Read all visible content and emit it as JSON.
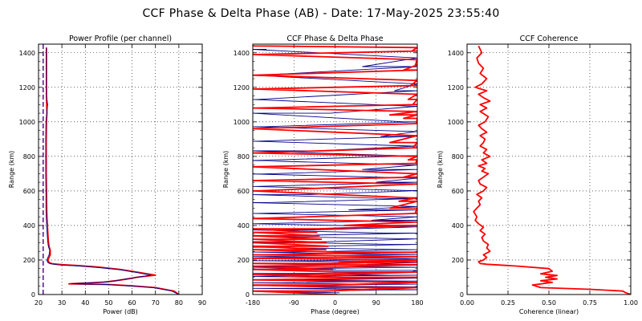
{
  "title": "CCF Phase & Delta Phase (AB) - Date: 17-May-2025 23:55:40",
  "chart_data": [
    {
      "type": "line",
      "title": "Power Profile (per channel)",
      "xlabel": "Power (dB)",
      "ylabel": "Range (km)",
      "xlim": [
        20,
        90
      ],
      "ylim": [
        0,
        1450
      ],
      "xticks": [
        "20",
        "30",
        "40",
        "50",
        "60",
        "70",
        "80",
        "90"
      ],
      "yticks": [
        "0",
        "200",
        "400",
        "600",
        "800",
        "1000",
        "1200",
        "1400"
      ],
      "grid": "dotted",
      "series": [
        {
          "color": "#ff0000",
          "x": [
            80,
            78,
            70,
            60,
            50,
            42,
            33,
            40,
            48,
            53,
            59,
            62,
            70,
            63,
            55,
            45,
            37,
            30,
            26,
            24.5,
            24,
            25,
            25,
            24.5,
            24.2,
            24,
            23.8,
            23.6,
            23.5,
            23.4,
            23.3,
            23.3,
            23.3,
            23.4,
            23.6,
            23.5,
            23.4,
            23.4,
            23.4,
            23.4
          ],
          "y": [
            0,
            20,
            40,
            50,
            58,
            60,
            62,
            66,
            72,
            80,
            92,
            100,
            112,
            128,
            145,
            160,
            168,
            173,
            178,
            185,
            200,
            230,
            255,
            280,
            310,
            350,
            400,
            450,
            500,
            600,
            700,
            800,
            900,
            1000,
            1050,
            1100,
            1150,
            1250,
            1350,
            1430
          ]
        },
        {
          "color": "#00008b",
          "x": [
            80,
            77,
            69,
            58,
            49,
            40,
            34,
            41,
            49,
            54,
            58,
            63,
            68,
            62,
            54,
            44,
            36,
            29,
            25,
            24,
            23.5,
            24.5,
            24.8,
            24.2,
            23.9,
            23.7,
            23.5,
            23.3,
            23.2,
            23.2,
            23.1,
            23.1,
            23.1,
            23.2,
            23.5,
            23.9,
            23.4,
            23.3,
            23.3,
            23.3
          ],
          "y": [
            0,
            20,
            40,
            50,
            58,
            60,
            63,
            67,
            73,
            82,
            92,
            102,
            112,
            128,
            145,
            158,
            166,
            171,
            178,
            185,
            200,
            230,
            255,
            280,
            310,
            350,
            400,
            450,
            500,
            600,
            700,
            800,
            900,
            1000,
            1050,
            1100,
            1150,
            1250,
            1350,
            1430
          ]
        },
        {
          "color": "#4b0082",
          "dashed": true,
          "x": [
            22,
            22
          ],
          "y": [
            0,
            1450
          ]
        }
      ]
    },
    {
      "type": "line",
      "title": "CCF Phase & Delta Phase",
      "xlabel": "Phase (degree)",
      "ylabel": "Range (km)",
      "xlim": [
        -180,
        180
      ],
      "ylim": [
        0,
        1450
      ],
      "xticks": [
        "-180",
        "-90",
        "0",
        "90",
        "180"
      ],
      "yticks": [
        "0",
        "200",
        "400",
        "600",
        "800",
        "1000",
        "1200",
        "1400"
      ],
      "grid": "dotted",
      "series": [
        {
          "color": "#00008b",
          "wrap": true,
          "x": [
            10,
            -150,
            160,
            -40,
            170,
            -170,
            60,
            -120,
            150,
            -10,
            175,
            -175,
            120,
            -60,
            165,
            10,
            -150,
            140,
            -165,
            70,
            150,
            -30,
            175,
            -160,
            100,
            -90,
            168,
            -175,
            130,
            -20,
            172,
            -168,
            110,
            -50,
            160,
            -178,
            80,
            170,
            -170,
            30,
            176,
            -150,
            120,
            -60,
            165,
            -172,
            90,
            178,
            -160,
            60,
            172,
            -176,
            140,
            -40,
            168,
            -170,
            100,
            176,
            -155,
            150,
            -10,
            174,
            -170,
            130,
            176,
            -165,
            60,
            178,
            -150
          ],
          "y": [
            10,
            18,
            28,
            36,
            44,
            52,
            60,
            68,
            78,
            86,
            95,
            104,
            112,
            122,
            130,
            140,
            148,
            158,
            166,
            175,
            186,
            196,
            208,
            220,
            232,
            246,
            260,
            274,
            290,
            306,
            322,
            338,
            356,
            374,
            392,
            410,
            430,
            450,
            470,
            490,
            510,
            532,
            556,
            578,
            602,
            626,
            650,
            674,
            698,
            724,
            750,
            776,
            804,
            832,
            860,
            888,
            916,
            944,
            972,
            1000,
            1050,
            1090,
            1130,
            1180,
            1220,
            1270,
            1320,
            1370,
            1420
          ]
        },
        {
          "color": "#ff0000",
          "wrap": true,
          "x": [
            5,
            -20,
            30,
            -10,
            160,
            -170,
            20,
            -10,
            10,
            -5,
            0,
            15,
            -12,
            8,
            170,
            -175,
            150,
            -160,
            10,
            -20,
            -15,
            -20,
            -30,
            -35,
            -40,
            -38,
            20,
            170,
            -178,
            175,
            120,
            140,
            165,
            -170,
            175,
            -178,
            150,
            172,
            -176,
            176,
            160,
            178,
            -175,
            170,
            120,
            176,
            -178,
            178,
            150,
            120,
            176,
            -175,
            170,
            160,
            176,
            -172,
            165,
            178,
            -176,
            150,
            176,
            174,
            -170,
            168,
            178,
            -176
          ],
          "y": [
            0,
            20,
            40,
            55,
            70,
            85,
            100,
            115,
            130,
            145,
            160,
            172,
            180,
            190,
            200,
            210,
            220,
            230,
            245,
            260,
            280,
            300,
            320,
            340,
            360,
            380,
            400,
            420,
            440,
            470,
            500,
            540,
            560,
            600,
            640,
            660,
            680,
            700,
            740,
            760,
            780,
            800,
            820,
            850,
            880,
            920,
            960,
            990,
            1020,
            1040,
            1060,
            1080,
            1100,
            1130,
            1160,
            1190,
            1210,
            1240,
            1270,
            1300,
            1330,
            1360,
            1390,
            1410,
            1430,
            1440
          ]
        }
      ]
    },
    {
      "type": "line",
      "title": "CCF Coherence",
      "xlabel": "Coherence (linear)",
      "ylabel": "Range (km)",
      "xlim": [
        0,
        1
      ],
      "ylim": [
        0,
        1450
      ],
      "xticks": [
        "0.00",
        "0.25",
        "0.50",
        "0.75",
        "1.00"
      ],
      "yticks": [
        "0",
        "200",
        "400",
        "600",
        "800",
        "1000",
        "1200",
        "1400"
      ],
      "grid": "dotted",
      "series": [
        {
          "color": "#ff0000",
          "x": [
            1.0,
            0.97,
            0.95,
            0.75,
            0.45,
            0.4,
            0.52,
            0.45,
            0.55,
            0.48,
            0.55,
            0.45,
            0.52,
            0.5,
            0.3,
            0.12,
            0.08,
            0.07,
            0.1,
            0.12,
            0.1,
            0.14,
            0.12,
            0.13,
            0.1,
            0.09,
            0.11,
            0.08,
            0.1,
            0.07,
            0.05,
            0.06,
            0.04,
            0.06,
            0.08,
            0.07,
            0.09,
            0.06,
            0.1,
            0.12,
            0.08,
            0.07,
            0.1,
            0.13,
            0.09,
            0.11,
            0.07,
            0.12,
            0.09,
            0.14,
            0.1,
            0.12,
            0.08,
            0.1,
            0.11,
            0.08,
            0.12,
            0.09,
            0.07,
            0.11,
            0.13,
            0.08,
            0.12,
            0.08,
            0.14,
            0.1,
            0.07,
            0.12,
            0.05,
            0.09,
            0.12,
            0.08,
            0.1,
            0.07,
            0.06,
            0.09,
            0.07
          ],
          "y": [
            0,
            10,
            20,
            30,
            40,
            55,
            70,
            80,
            90,
            100,
            110,
            120,
            135,
            150,
            165,
            175,
            180,
            190,
            200,
            215,
            230,
            250,
            270,
            290,
            310,
            330,
            350,
            370,
            390,
            410,
            430,
            450,
            480,
            500,
            520,
            540,
            560,
            580,
            600,
            620,
            640,
            660,
            680,
            700,
            715,
            730,
            745,
            760,
            780,
            800,
            820,
            840,
            860,
            880,
            900,
            920,
            940,
            960,
            980,
            1000,
            1030,
            1060,
            1080,
            1100,
            1120,
            1140,
            1160,
            1180,
            1200,
            1220,
            1250,
            1280,
            1310,
            1340,
            1370,
            1400,
            1440
          ]
        }
      ]
    }
  ]
}
